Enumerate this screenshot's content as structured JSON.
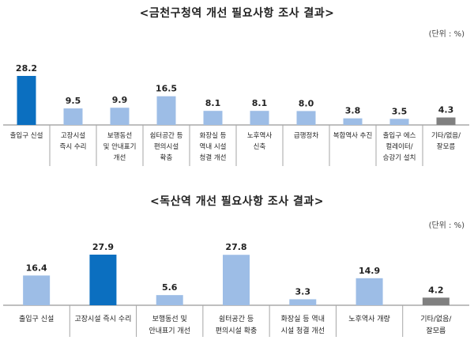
{
  "chart_data": [
    {
      "type": "bar",
      "title": "<금천구청역 개선 필요사항 조사 결과>",
      "unit_note": "(단위 : %)",
      "categories": [
        [
          "출입구 신설"
        ],
        [
          "고장시설",
          "즉시 수리"
        ],
        [
          "보행동선",
          "및 안내표기",
          "개선"
        ],
        [
          "쉼터공간 등",
          "편의시설",
          "확충"
        ],
        [
          "화장실 등",
          "역내 시설",
          "청결 개선"
        ],
        [
          "노후역사",
          "신축"
        ],
        [
          "급행정차"
        ],
        [
          "복합역사 추진"
        ],
        [
          "출입구 에스",
          "컬레이터/",
          "승강기 설치"
        ],
        [
          "기타/없음/",
          "잘모름"
        ]
      ],
      "values": [
        28.2,
        9.5,
        9.9,
        16.5,
        8.1,
        8.1,
        8.0,
        3.8,
        3.5,
        4.3
      ],
      "value_labels": [
        "28.2",
        "9.5",
        "9.9",
        "16.5",
        "8.1",
        "8.1",
        "8.0",
        "3.8",
        "3.5",
        "4.3"
      ],
      "bar_kinds": [
        "highlight",
        "normal",
        "normal",
        "normal",
        "normal",
        "normal",
        "normal",
        "normal",
        "normal",
        "other"
      ]
    },
    {
      "type": "bar",
      "title": "<독산역 개선 필요사항 조사 결과>",
      "unit_note": "(단위 : %)",
      "categories": [
        [
          "출입구 신설"
        ],
        [
          "고장시설 즉시 수리"
        ],
        [
          "보행동선 및",
          "안내표기 개선"
        ],
        [
          "쉼터공간 등",
          "편의시설 확충"
        ],
        [
          "화장실 등 역내",
          "시설 청결 개선"
        ],
        [
          "노후역사 개량"
        ],
        [
          "기타/없음/",
          "잘모름"
        ]
      ],
      "values": [
        16.4,
        27.9,
        5.6,
        27.8,
        3.3,
        14.9,
        4.2
      ],
      "value_labels": [
        "16.4",
        "27.9",
        "5.6",
        "27.8",
        "3.3",
        "14.9",
        "4.2"
      ],
      "bar_kinds": [
        "normal",
        "highlight",
        "normal",
        "normal",
        "normal",
        "normal",
        "other"
      ]
    }
  ],
  "colors": {
    "highlight": "#0b6fc0",
    "normal": "#9dbde6",
    "other": "#808080",
    "axis": "#7f7f7f",
    "separator": "#a6a6a6"
  }
}
